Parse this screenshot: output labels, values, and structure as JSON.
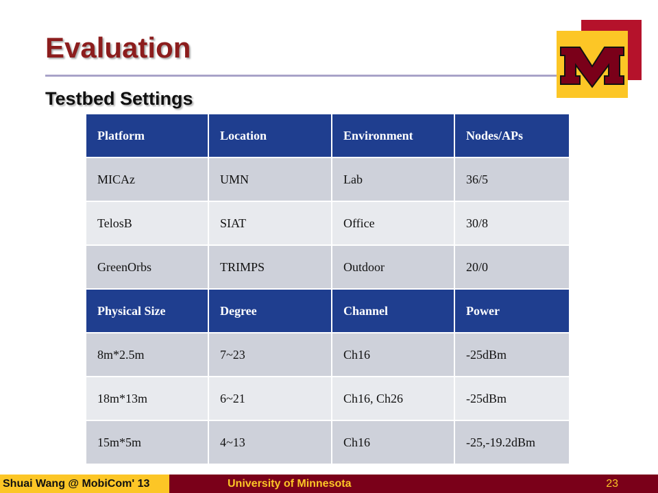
{
  "slide": {
    "title": "Evaluation",
    "subtitle": "Testbed Settings"
  },
  "logo": {
    "icon": "university-m-logo-icon",
    "colors": {
      "red": "#b5122b",
      "gold": "#fcc626",
      "maroon": "#7a0019"
    }
  },
  "table": {
    "rows": [
      {
        "type": "head",
        "cells": [
          "Platform",
          "Location",
          "Environment",
          "Nodes/APs"
        ]
      },
      {
        "type": "odd",
        "cells": [
          "MICAz",
          "UMN",
          "Lab",
          "36/5"
        ]
      },
      {
        "type": "even",
        "cells": [
          "TelosB",
          "SIAT",
          "Office",
          "30/8"
        ]
      },
      {
        "type": "odd",
        "cells": [
          "GreenOrbs",
          "TRIMPS",
          "Outdoor",
          "20/0"
        ]
      },
      {
        "type": "head",
        "cells": [
          "Physical Size",
          "Degree",
          "Channel",
          "Power"
        ]
      },
      {
        "type": "odd",
        "cells": [
          "8m*2.5m",
          "7~23",
          "Ch16",
          "-25dBm"
        ]
      },
      {
        "type": "even",
        "cells": [
          "18m*13m",
          "6~21",
          "Ch16, Ch26",
          "-25dBm"
        ]
      },
      {
        "type": "odd",
        "cells": [
          "15m*5m",
          "4~13",
          "Ch16",
          "-25,-19.2dBm"
        ]
      }
    ],
    "colors": {
      "header": "#1f3e8f",
      "odd": "#ced1da",
      "even": "#e8eaee"
    }
  },
  "footer": {
    "author": "Shuai Wang @ MobiCom' 13",
    "institution": "University of Minnesota",
    "page_number": "23"
  }
}
